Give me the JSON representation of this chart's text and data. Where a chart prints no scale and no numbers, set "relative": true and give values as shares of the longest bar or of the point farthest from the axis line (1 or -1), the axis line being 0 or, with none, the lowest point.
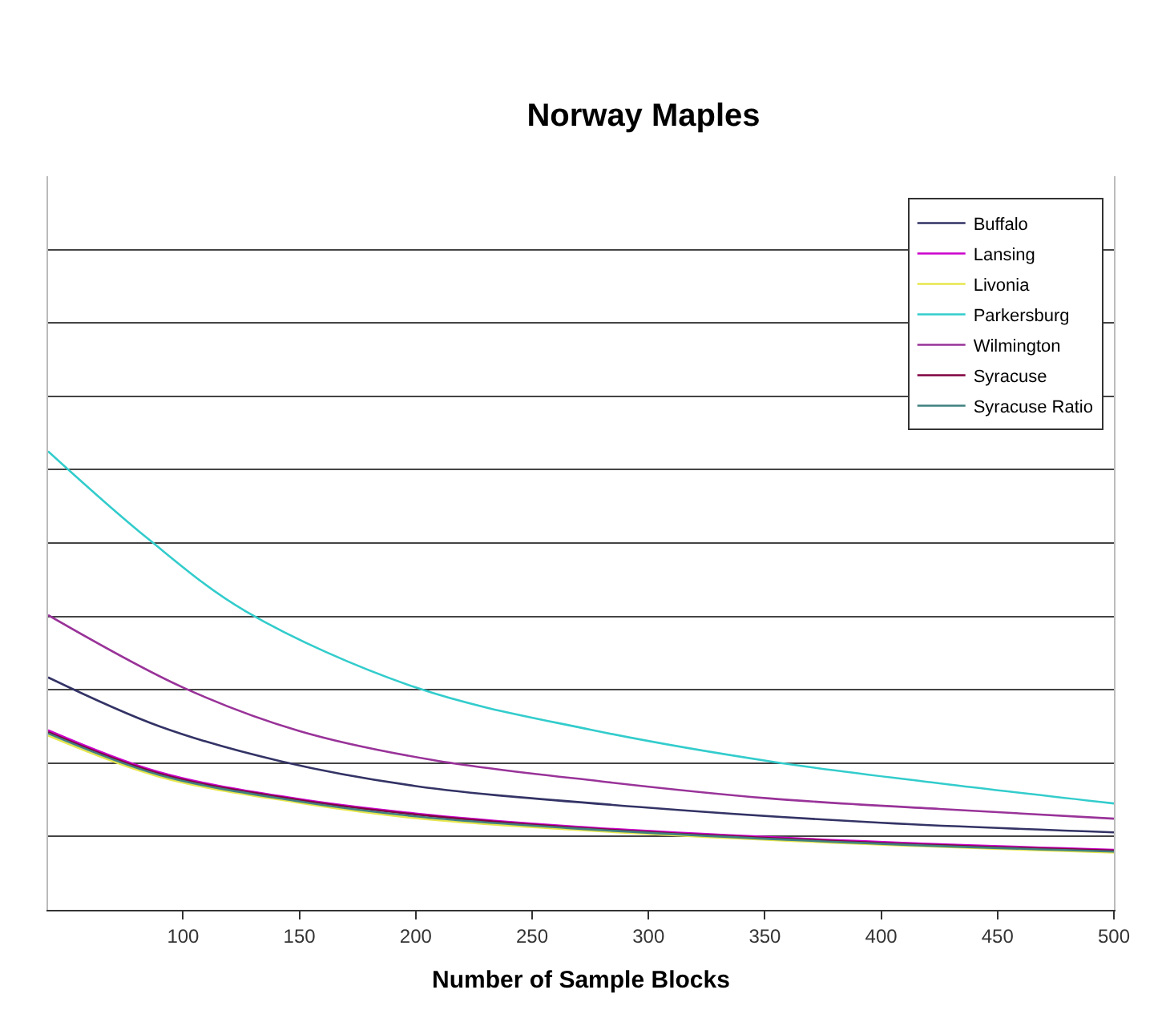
{
  "chart_data": {
    "type": "line",
    "title": "Norway Maples",
    "xlabel": "Number of Sample Blocks",
    "relative": true,
    "xlim": [
      42,
      500
    ],
    "xticks": [
      100,
      150,
      200,
      250,
      300,
      350,
      400,
      450,
      500
    ],
    "grid": "y",
    "legend": "top right",
    "marker": "none",
    "series": [
      {
        "name": "Buffalo",
        "color": "#333366",
        "x": [
          42,
          90,
          142,
          200,
          297,
          400,
          500
        ],
        "values": [
          0.507,
          0.4,
          0.324,
          0.27,
          0.224,
          0.19,
          0.169
        ]
      },
      {
        "name": "Lansing",
        "color": "#cc00cc",
        "x": [
          42,
          90,
          148,
          200,
          267,
          386,
          500
        ],
        "values": [
          0.392,
          0.3,
          0.243,
          0.21,
          0.182,
          0.151,
          0.131
        ]
      },
      {
        "name": "Livonia",
        "color": "#e6e64d",
        "x": [
          42,
          90,
          148,
          200,
          267,
          386,
          500
        ],
        "values": [
          0.38,
          0.29,
          0.235,
          0.2,
          0.175,
          0.145,
          0.125
        ]
      },
      {
        "name": "Parkersburg",
        "color": "#33cccc",
        "x": [
          42,
          85,
          127,
          200,
          275,
          352,
          425,
          500
        ],
        "values": [
          1.0,
          0.809,
          0.651,
          0.485,
          0.393,
          0.324,
          0.276,
          0.232
        ]
      },
      {
        "name": "Wilmington",
        "color": "#993399",
        "x": [
          42,
          100,
          150,
          207,
          280,
          352,
          425,
          500
        ],
        "values": [
          0.643,
          0.485,
          0.39,
          0.327,
          0.28,
          0.243,
          0.22,
          0.199
        ]
      },
      {
        "name": "Syracuse",
        "color": "#800040",
        "x": [
          42,
          90,
          148,
          200,
          267,
          386,
          500
        ],
        "values": [
          0.388,
          0.297,
          0.241,
          0.208,
          0.18,
          0.149,
          0.129
        ]
      },
      {
        "name": "Syracuse Ratio",
        "color": "#408080",
        "x": [
          42,
          90,
          148,
          200,
          267,
          386,
          500
        ],
        "values": [
          0.385,
          0.294,
          0.238,
          0.204,
          0.178,
          0.147,
          0.127
        ]
      }
    ]
  }
}
